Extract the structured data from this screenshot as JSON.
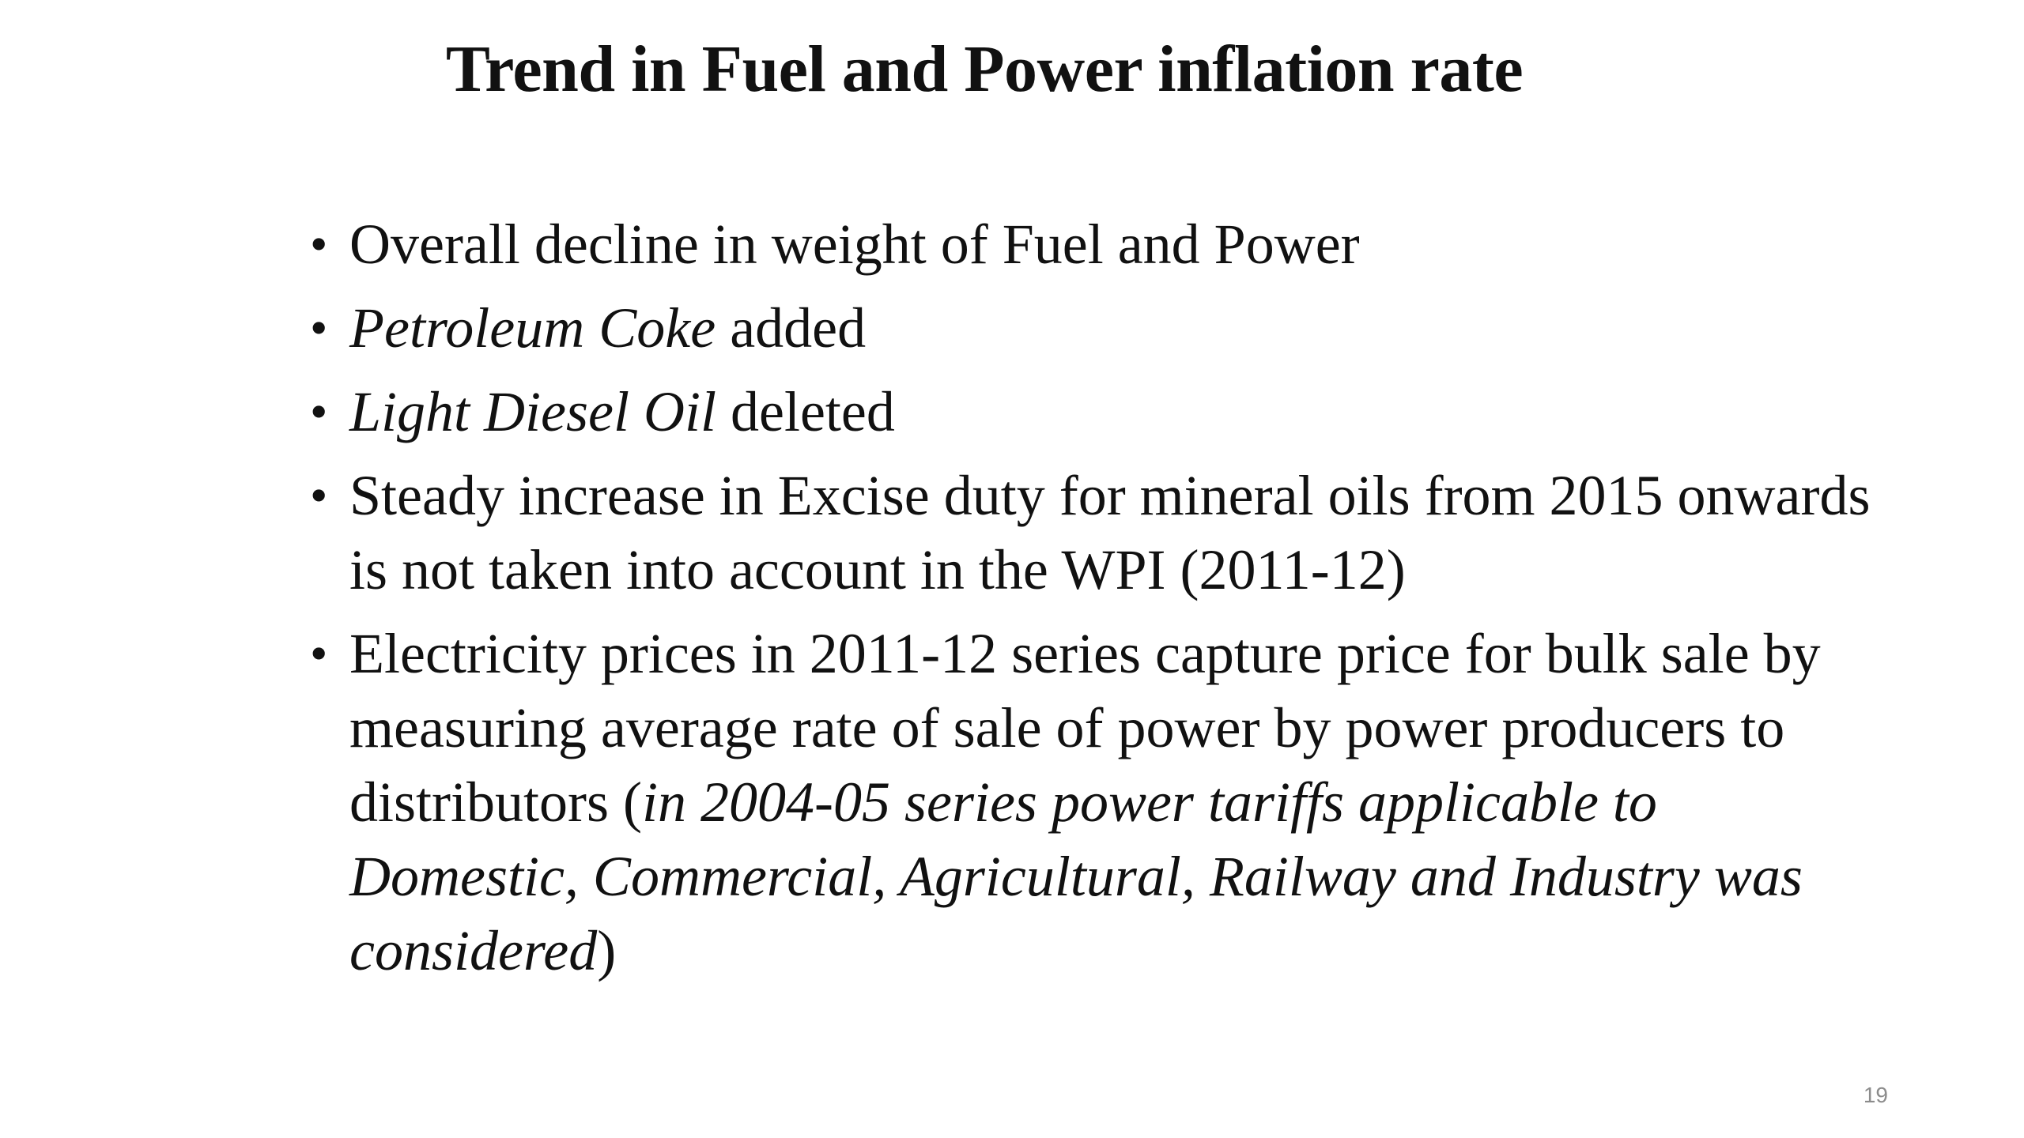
{
  "slide": {
    "title": "Trend in Fuel and Power inflation rate",
    "bullets": [
      {
        "parts": [
          {
            "text": "Overall decline in weight of Fuel and Power",
            "italic": false
          }
        ]
      },
      {
        "parts": [
          {
            "text": "Petroleum Coke",
            "italic": true
          },
          {
            "text": " added",
            "italic": false
          }
        ]
      },
      {
        "parts": [
          {
            "text": "Light Diesel Oil",
            "italic": true
          },
          {
            "text": " deleted",
            "italic": false
          }
        ]
      },
      {
        "parts": [
          {
            "text": "Steady increase in Excise duty for mineral oils from 2015 onwards is not taken into account in the WPI (2011-12)",
            "italic": false
          }
        ]
      },
      {
        "parts": [
          {
            "text": "Electricity prices in 2011-12 series capture price for bulk sale by measuring average rate of sale of power by power producers to distributors (",
            "italic": false
          },
          {
            "text": "in 2004-05 series power tariffs applicable to Domestic, Commercial, Agricultural, Railway and Industry was considered",
            "italic": true
          },
          {
            "text": ")",
            "italic": false
          }
        ]
      }
    ],
    "page_number": "19"
  }
}
